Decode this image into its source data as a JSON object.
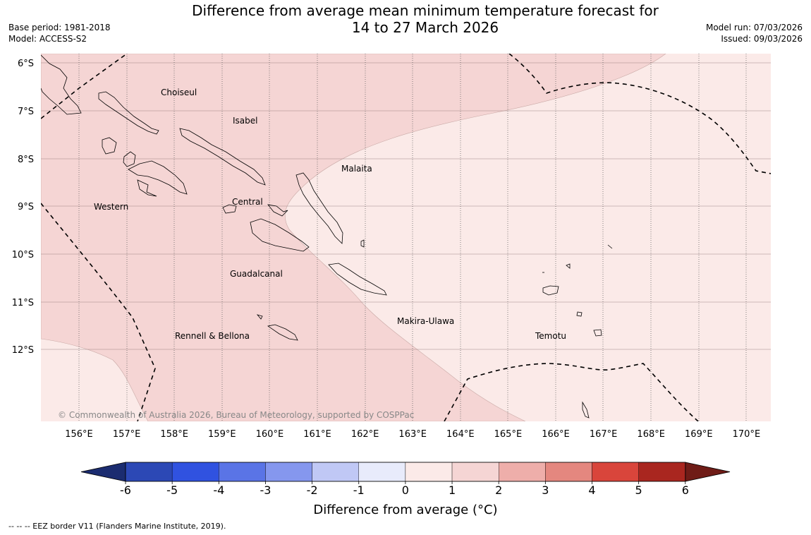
{
  "header": {
    "title_line1": "Difference from average mean minimum temperature forecast for",
    "title_line2": "14 to 27 March 2026",
    "base_period": "Base period: 1981-2018",
    "model": "Model: ACCESS-S2",
    "model_run": "Model run: 07/03/2026",
    "issued": "Issued: 09/03/2026"
  },
  "map": {
    "lat_labels": [
      "6°S",
      "7°S",
      "8°S",
      "9°S",
      "10°S",
      "11°S",
      "12°S"
    ],
    "lon_labels": [
      "156°E",
      "157°E",
      "158°E",
      "159°E",
      "160°E",
      "161°E",
      "162°E",
      "163°E",
      "164°E",
      "165°E",
      "166°E",
      "167°E",
      "168°E",
      "169°E",
      "170°E"
    ],
    "regions": {
      "choiseul": "Choiseul",
      "isabel": "Isabel",
      "malaita": "Malaita",
      "western": "Western",
      "central": "Central",
      "guadalcanal": "Guadalcanal",
      "makira_ulawa": "Makira-Ulawa",
      "rennell_bellona": "Rennell & Bellona",
      "temotu": "Temotu"
    },
    "copyright": "© Commonwealth of Australia 2026, Bureau of Meteorology, supported by COSPPac",
    "anomaly_colors": {
      "range_0_1": "#fbeae8",
      "range_1_2": "#f5d5d4"
    }
  },
  "colorbar": {
    "title": "Difference from average (°C)",
    "ticks": [
      "-6",
      "-5",
      "-4",
      "-3",
      "-2",
      "-1",
      "0",
      "1",
      "2",
      "3",
      "4",
      "5",
      "6"
    ],
    "colors": [
      "#233e9e",
      "#2c48b5",
      "#3052e0",
      "#5a74e6",
      "#8597ee",
      "#c0c8f5",
      "#e8ebfb",
      "#fbeae8",
      "#f5d5d4",
      "#eeaeaa",
      "#e4877f",
      "#d9453b",
      "#a9261f",
      "#6f1c17"
    ],
    "extend_low_color": "#1b2c70",
    "extend_high_color": "#6f1c17"
  },
  "legend_note": "--  --  -- EEZ border V11 (Flanders Marine Institute, 2019)."
}
